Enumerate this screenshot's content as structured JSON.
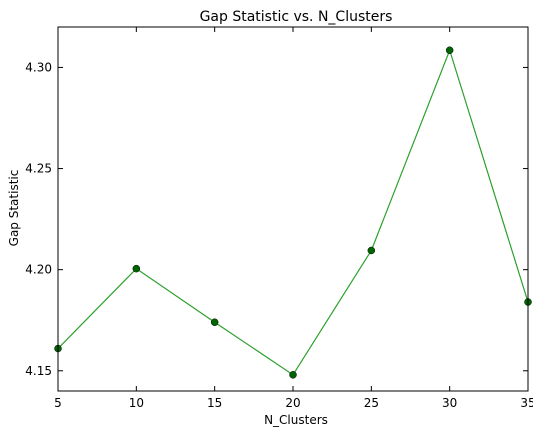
{
  "chart_data": {
    "type": "line",
    "title": "Gap Statistic vs. N_Clusters",
    "xlabel": "N_Clusters",
    "ylabel": "Gap Statistic",
    "x": [
      5,
      10,
      15,
      20,
      25,
      30,
      35
    ],
    "series": [
      {
        "values": [
          4.161,
          4.2005,
          4.174,
          4.148,
          4.2095,
          4.3085,
          4.184
        ]
      }
    ],
    "xlim": [
      5,
      35
    ],
    "ylim": [
      4.14,
      4.32
    ],
    "xticks": [
      "5",
      "10",
      "15",
      "20",
      "25",
      "30",
      "35"
    ],
    "yticks": [
      "4.15",
      "4.20",
      "4.25",
      "4.30"
    ],
    "ytick_values": [
      4.15,
      4.2,
      4.25,
      4.3
    ],
    "grid": false,
    "line_color": "#2ca02c",
    "marker_color": "#006400"
  }
}
